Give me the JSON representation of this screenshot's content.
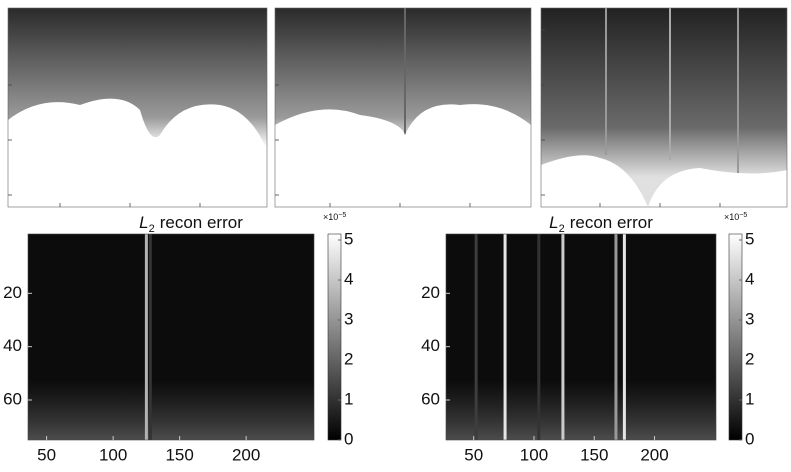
{
  "chart_data": [
    {
      "type": "heatmap",
      "title": {
        "symbol": "L",
        "subscript": "2",
        "text": "recon error"
      },
      "xlim": [
        36,
        251
      ],
      "xticks": [
        50,
        100,
        150,
        200
      ],
      "ylim": [
        0,
        75
      ],
      "yticks": [
        20,
        40,
        60
      ],
      "clim": [
        0,
        5
      ],
      "cticks": [
        0,
        1,
        2,
        3,
        4,
        5
      ],
      "color_multiplier": {
        "base": "×10",
        "exponent": "−5"
      },
      "stripes": [
        {
          "x": 125,
          "value": 3.5
        },
        {
          "x": 128,
          "value": 1
        }
      ]
    },
    {
      "type": "heatmap",
      "title": {
        "symbol": "L",
        "subscript": "2",
        "text": "recon error"
      },
      "xlim": [
        27,
        251
      ],
      "xticks": [
        50,
        100,
        150,
        200
      ],
      "ylim": [
        0,
        75
      ],
      "yticks": [
        20,
        40,
        60
      ],
      "clim": [
        0,
        5
      ],
      "cticks": [
        0,
        1,
        2,
        3,
        4,
        5
      ],
      "color_multiplier": {
        "base": "×10",
        "exponent": "−5"
      },
      "stripes": [
        {
          "x": 76,
          "value": 4.5
        },
        {
          "x": 124,
          "value": 4
        },
        {
          "x": 168,
          "value": 3
        },
        {
          "x": 175,
          "value": 4.5
        },
        {
          "x": 104,
          "value": 1
        },
        {
          "x": 52,
          "value": 1.2
        }
      ]
    }
  ]
}
